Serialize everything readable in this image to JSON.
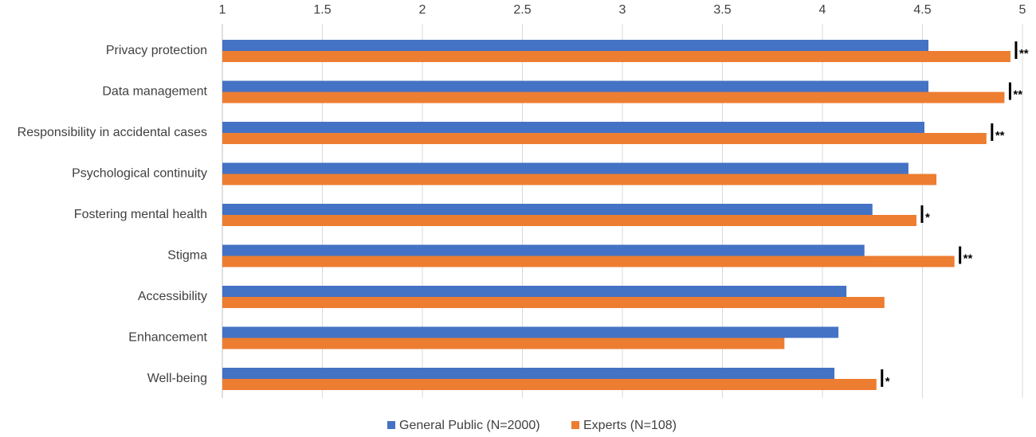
{
  "chart_data": {
    "type": "bar",
    "orientation": "horizontal",
    "categories": [
      "Privacy protection",
      "Data management",
      "Responsibility in accidental cases",
      "Psychological continuity",
      "Fostering mental health",
      "Stigma",
      "Accessibility",
      "Enhancement",
      "Well-being"
    ],
    "series": [
      {
        "name": "General Public (N=2000)",
        "color": "#4472c4",
        "values": [
          4.53,
          4.53,
          4.51,
          4.43,
          4.25,
          4.21,
          4.12,
          4.08,
          4.06
        ]
      },
      {
        "name": "Experts (N=108)",
        "color": "#ed7d31",
        "values": [
          4.94,
          4.91,
          4.82,
          4.57,
          4.47,
          4.66,
          4.31,
          3.81,
          4.27
        ]
      }
    ],
    "significance": [
      "**",
      "**",
      "**",
      null,
      "*",
      "**",
      null,
      null,
      "*"
    ],
    "xlim": [
      1,
      5
    ],
    "xticks": [
      1,
      1.5,
      2,
      2.5,
      3,
      3.5,
      4,
      4.5,
      5
    ],
    "grid": true,
    "legend": "bottom"
  }
}
